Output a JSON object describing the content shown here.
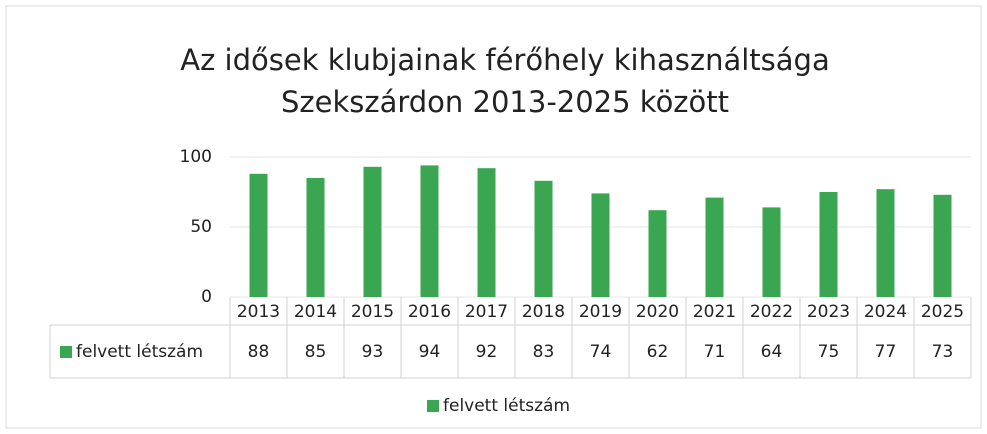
{
  "chart_data": {
    "type": "bar",
    "title": [
      "Az idősek klubjainak férőhely kihasználtsága",
      "Szekszárdon 2013-2025 között"
    ],
    "categories": [
      "2013",
      "2014",
      "2015",
      "2016",
      "2017",
      "2018",
      "2019",
      "2020",
      "2021",
      "2022",
      "2023",
      "2024",
      "2025"
    ],
    "series": [
      {
        "name": "felvett létszám",
        "color": "#3aa651",
        "values": [
          88,
          85,
          93,
          94,
          92,
          83,
          74,
          62,
          71,
          64,
          75,
          77,
          73
        ]
      }
    ],
    "ylim": [
      0,
      100
    ],
    "yticks": [
      0,
      50,
      100
    ],
    "grid": true,
    "legend": "bottom",
    "data_table": true
  }
}
